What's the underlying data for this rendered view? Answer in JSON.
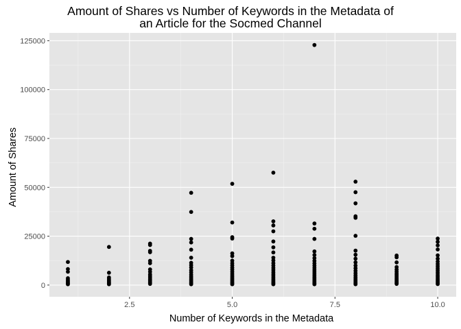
{
  "chart_data": {
    "type": "scatter",
    "title_line1": "Amount of Shares vs Number of Keywords in the Metadata of",
    "title_line2": "an Article for the Socmed Channel",
    "xlabel": "Number of Keywords in the Metadata",
    "ylabel": "Amount of Shares",
    "xlim": [
      0.55,
      10.45
    ],
    "ylim": [
      -6000,
      129000
    ],
    "x_ticks": [
      2.5,
      5.0,
      7.5,
      10.0
    ],
    "x_tick_labels": [
      "2.5",
      "5.0",
      "7.5",
      "10.0"
    ],
    "y_ticks": [
      0,
      25000,
      50000,
      75000,
      100000,
      125000
    ],
    "y_tick_labels": [
      "0",
      "25000",
      "50000",
      "75000",
      "100000",
      "125000"
    ],
    "grid": true,
    "colors": {
      "panel": "#e5e5e5",
      "grid_major": "#ffffff",
      "grid_minor": "#f2f2f2",
      "point": "#000000",
      "tick_text": "#4d4d4d"
    },
    "points": [
      {
        "x": 1,
        "y": 11800
      },
      {
        "x": 1,
        "y": 8200
      },
      {
        "x": 1,
        "y": 6800
      },
      {
        "x": 1,
        "y": 3500
      },
      {
        "x": 1,
        "y": 2800
      },
      {
        "x": 1,
        "y": 2200
      },
      {
        "x": 1,
        "y": 1700
      },
      {
        "x": 1,
        "y": 1200
      },
      {
        "x": 1,
        "y": 800
      },
      {
        "x": 1,
        "y": 400
      },
      {
        "x": 2,
        "y": 19500
      },
      {
        "x": 2,
        "y": 6300
      },
      {
        "x": 2,
        "y": 3900
      },
      {
        "x": 2,
        "y": 3200
      },
      {
        "x": 2,
        "y": 2600
      },
      {
        "x": 2,
        "y": 2100
      },
      {
        "x": 2,
        "y": 1600
      },
      {
        "x": 2,
        "y": 1200
      },
      {
        "x": 2,
        "y": 800
      },
      {
        "x": 2,
        "y": 400
      },
      {
        "x": 3,
        "y": 21200
      },
      {
        "x": 3,
        "y": 20500
      },
      {
        "x": 3,
        "y": 17500
      },
      {
        "x": 3,
        "y": 16800
      },
      {
        "x": 3,
        "y": 12400
      },
      {
        "x": 3,
        "y": 11200
      },
      {
        "x": 3,
        "y": 8000
      },
      {
        "x": 3,
        "y": 6800
      },
      {
        "x": 3,
        "y": 5500
      },
      {
        "x": 3,
        "y": 4600
      },
      {
        "x": 3,
        "y": 3800
      },
      {
        "x": 3,
        "y": 3000
      },
      {
        "x": 3,
        "y": 2300
      },
      {
        "x": 3,
        "y": 1700
      },
      {
        "x": 3,
        "y": 1100
      },
      {
        "x": 3,
        "y": 600
      },
      {
        "x": 4,
        "y": 47200
      },
      {
        "x": 4,
        "y": 37400
      },
      {
        "x": 4,
        "y": 23600
      },
      {
        "x": 4,
        "y": 21800
      },
      {
        "x": 4,
        "y": 18100
      },
      {
        "x": 4,
        "y": 14000
      },
      {
        "x": 4,
        "y": 11400
      },
      {
        "x": 4,
        "y": 10200
      },
      {
        "x": 4,
        "y": 9000
      },
      {
        "x": 4,
        "y": 7600
      },
      {
        "x": 4,
        "y": 6500
      },
      {
        "x": 4,
        "y": 5400
      },
      {
        "x": 4,
        "y": 4500
      },
      {
        "x": 4,
        "y": 3700
      },
      {
        "x": 4,
        "y": 2900
      },
      {
        "x": 4,
        "y": 2200
      },
      {
        "x": 4,
        "y": 1500
      },
      {
        "x": 4,
        "y": 900
      },
      {
        "x": 4,
        "y": 400
      },
      {
        "x": 5,
        "y": 51800
      },
      {
        "x": 5,
        "y": 32000
      },
      {
        "x": 5,
        "y": 24500
      },
      {
        "x": 5,
        "y": 23800
      },
      {
        "x": 5,
        "y": 16200
      },
      {
        "x": 5,
        "y": 14800
      },
      {
        "x": 5,
        "y": 12500
      },
      {
        "x": 5,
        "y": 11200
      },
      {
        "x": 5,
        "y": 10100
      },
      {
        "x": 5,
        "y": 9000
      },
      {
        "x": 5,
        "y": 8000
      },
      {
        "x": 5,
        "y": 7000
      },
      {
        "x": 5,
        "y": 6100
      },
      {
        "x": 5,
        "y": 5200
      },
      {
        "x": 5,
        "y": 4400
      },
      {
        "x": 5,
        "y": 3600
      },
      {
        "x": 5,
        "y": 2900
      },
      {
        "x": 5,
        "y": 2200
      },
      {
        "x": 5,
        "y": 1500
      },
      {
        "x": 5,
        "y": 900
      },
      {
        "x": 5,
        "y": 400
      },
      {
        "x": 6,
        "y": 57500
      },
      {
        "x": 6,
        "y": 32600
      },
      {
        "x": 6,
        "y": 30500
      },
      {
        "x": 6,
        "y": 27500
      },
      {
        "x": 6,
        "y": 22300
      },
      {
        "x": 6,
        "y": 19300
      },
      {
        "x": 6,
        "y": 16700
      },
      {
        "x": 6,
        "y": 14000
      },
      {
        "x": 6,
        "y": 12600
      },
      {
        "x": 6,
        "y": 11200
      },
      {
        "x": 6,
        "y": 10000
      },
      {
        "x": 6,
        "y": 8800
      },
      {
        "x": 6,
        "y": 7700
      },
      {
        "x": 6,
        "y": 6600
      },
      {
        "x": 6,
        "y": 5600
      },
      {
        "x": 6,
        "y": 4700
      },
      {
        "x": 6,
        "y": 3800
      },
      {
        "x": 6,
        "y": 3000
      },
      {
        "x": 6,
        "y": 2200
      },
      {
        "x": 6,
        "y": 1500
      },
      {
        "x": 6,
        "y": 900
      },
      {
        "x": 6,
        "y": 400
      },
      {
        "x": 7,
        "y": 122800
      },
      {
        "x": 7,
        "y": 31500
      },
      {
        "x": 7,
        "y": 28800
      },
      {
        "x": 7,
        "y": 23600
      },
      {
        "x": 7,
        "y": 17200
      },
      {
        "x": 7,
        "y": 15400
      },
      {
        "x": 7,
        "y": 13800
      },
      {
        "x": 7,
        "y": 12400
      },
      {
        "x": 7,
        "y": 11100
      },
      {
        "x": 7,
        "y": 9900
      },
      {
        "x": 7,
        "y": 8800
      },
      {
        "x": 7,
        "y": 7700
      },
      {
        "x": 7,
        "y": 6700
      },
      {
        "x": 7,
        "y": 5700
      },
      {
        "x": 7,
        "y": 4800
      },
      {
        "x": 7,
        "y": 3900
      },
      {
        "x": 7,
        "y": 3100
      },
      {
        "x": 7,
        "y": 2300
      },
      {
        "x": 7,
        "y": 1600
      },
      {
        "x": 7,
        "y": 900
      },
      {
        "x": 7,
        "y": 400
      },
      {
        "x": 8,
        "y": 52900
      },
      {
        "x": 8,
        "y": 47500
      },
      {
        "x": 8,
        "y": 41800
      },
      {
        "x": 8,
        "y": 35200
      },
      {
        "x": 8,
        "y": 34400
      },
      {
        "x": 8,
        "y": 25200
      },
      {
        "x": 8,
        "y": 17600
      },
      {
        "x": 8,
        "y": 15500
      },
      {
        "x": 8,
        "y": 13500
      },
      {
        "x": 8,
        "y": 11600
      },
      {
        "x": 8,
        "y": 10000
      },
      {
        "x": 8,
        "y": 8600
      },
      {
        "x": 8,
        "y": 7300
      },
      {
        "x": 8,
        "y": 6100
      },
      {
        "x": 8,
        "y": 5000
      },
      {
        "x": 8,
        "y": 4000
      },
      {
        "x": 8,
        "y": 3100
      },
      {
        "x": 8,
        "y": 2300
      },
      {
        "x": 8,
        "y": 1500
      },
      {
        "x": 8,
        "y": 900
      },
      {
        "x": 8,
        "y": 400
      },
      {
        "x": 9,
        "y": 15100
      },
      {
        "x": 9,
        "y": 14200
      },
      {
        "x": 9,
        "y": 11600
      },
      {
        "x": 9,
        "y": 9200
      },
      {
        "x": 9,
        "y": 8000
      },
      {
        "x": 9,
        "y": 7000
      },
      {
        "x": 9,
        "y": 6100
      },
      {
        "x": 9,
        "y": 5300
      },
      {
        "x": 9,
        "y": 4500
      },
      {
        "x": 9,
        "y": 3700
      },
      {
        "x": 9,
        "y": 3000
      },
      {
        "x": 9,
        "y": 2300
      },
      {
        "x": 9,
        "y": 1700
      },
      {
        "x": 9,
        "y": 1100
      },
      {
        "x": 9,
        "y": 600
      },
      {
        "x": 10,
        "y": 23800
      },
      {
        "x": 10,
        "y": 22100
      },
      {
        "x": 10,
        "y": 20300
      },
      {
        "x": 10,
        "y": 18200
      },
      {
        "x": 10,
        "y": 15200
      },
      {
        "x": 10,
        "y": 13500
      },
      {
        "x": 10,
        "y": 12000
      },
      {
        "x": 10,
        "y": 10800
      },
      {
        "x": 10,
        "y": 9700
      },
      {
        "x": 10,
        "y": 8600
      },
      {
        "x": 10,
        "y": 7600
      },
      {
        "x": 10,
        "y": 6600
      },
      {
        "x": 10,
        "y": 5700
      },
      {
        "x": 10,
        "y": 4800
      },
      {
        "x": 10,
        "y": 4000
      },
      {
        "x": 10,
        "y": 3200
      },
      {
        "x": 10,
        "y": 2500
      },
      {
        "x": 10,
        "y": 1800
      },
      {
        "x": 10,
        "y": 1100
      },
      {
        "x": 10,
        "y": 500
      }
    ]
  }
}
